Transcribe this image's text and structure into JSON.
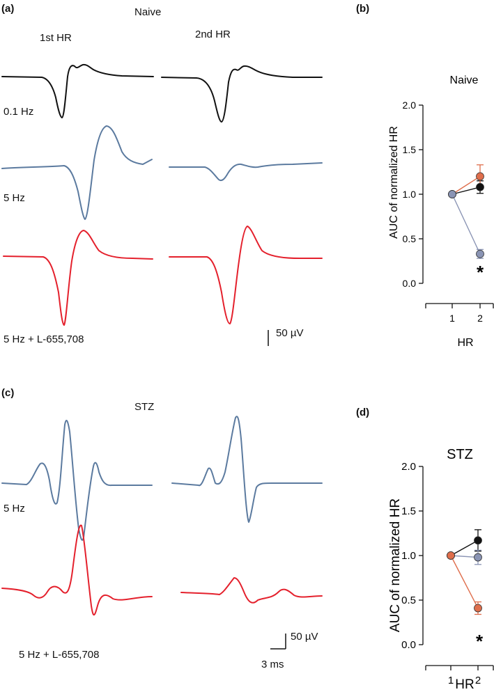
{
  "panels": {
    "a": {
      "label": "(a)",
      "group": "Naive",
      "col1": "1st HR",
      "col2": "2nd  HR",
      "trace_labels": [
        "0.1 Hz",
        "5 Hz",
        "5 Hz + L-655,708"
      ],
      "scalebar_label": "50 µV"
    },
    "b": {
      "label": "(b)"
    },
    "c": {
      "label": "(c)",
      "group": "STZ",
      "trace_labels": [
        "5 Hz",
        "5 Hz + L-655,708"
      ],
      "scalebar_v_label": "50 µV",
      "scalebar_t_label": "3 ms"
    },
    "d": {
      "label": "(d)"
    }
  },
  "colors": {
    "black": "#111111",
    "blue": "#5b7a9f",
    "red": "#e4202c",
    "orange": "#df6e4c",
    "gray_blue": "#8a94b4"
  },
  "chart_data": [
    {
      "type": "line",
      "title": "Naive",
      "xlabel": "HR",
      "ylabel": "AUC of normalized HR",
      "x": [
        1,
        2
      ],
      "ylim": [
        0,
        2.0
      ],
      "yticks": [
        "0.0",
        "0.5",
        "1.0",
        "1.5",
        "2.0"
      ],
      "xticks": [
        "1",
        "2"
      ],
      "series": [
        {
          "color": "black",
          "values": [
            1.0,
            1.08
          ],
          "err": [
            0,
            0.07
          ]
        },
        {
          "color": "orange",
          "values": [
            1.0,
            1.2
          ],
          "err": [
            0,
            0.13
          ]
        },
        {
          "color": "gray_blue",
          "values": [
            1.0,
            0.33
          ],
          "err": [
            0,
            0.05
          ]
        }
      ],
      "annotation": "*"
    },
    {
      "type": "line",
      "title": "STZ",
      "xlabel": "HR",
      "ylabel": "AUC of normalized HR",
      "x": [
        1,
        2
      ],
      "ylim": [
        0,
        2.0
      ],
      "yticks": [
        "0.0",
        "0.5",
        "1.0",
        "1.5",
        "2.0"
      ],
      "xticks": [
        "1",
        "2"
      ],
      "series": [
        {
          "color": "black",
          "values": [
            1.0,
            1.17
          ],
          "err": [
            0,
            0.12
          ]
        },
        {
          "color": "gray_blue",
          "values": [
            1.0,
            0.98
          ],
          "err": [
            0,
            0.08
          ]
        },
        {
          "color": "orange",
          "values": [
            1.0,
            0.41
          ],
          "err": [
            0,
            0.07
          ]
        }
      ],
      "annotation": "*"
    }
  ]
}
